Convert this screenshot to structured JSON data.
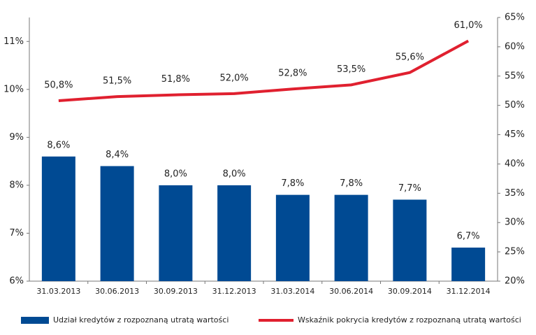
{
  "chart_data": {
    "type": "bar-line",
    "categories": [
      "31.03.2013",
      "30.06.2013",
      "30.09.2013",
      "31.12.2013",
      "31.03.2014",
      "30.06.2014",
      "30.09.2014",
      "31.12.2014"
    ],
    "series": [
      {
        "name": "Udział kredytów z rozpoznaną utratą wartości",
        "type": "bar",
        "color": "#004a93",
        "values": [
          8.6,
          8.4,
          8.0,
          8.0,
          7.8,
          7.8,
          7.7,
          6.7
        ],
        "value_labels": [
          "8,6%",
          "8,4%",
          "8,0%",
          "8,0%",
          "7,8%",
          "7,8%",
          "7,7%",
          "6,7%"
        ]
      },
      {
        "name": "Wskaźnik pokrycia kredytów z rozpoznaną utratą wartości",
        "type": "line",
        "axis": "y2",
        "color": "#e0202f",
        "values": [
          50.8,
          51.5,
          51.8,
          52.0,
          52.8,
          53.5,
          55.6,
          61.0
        ],
        "value_labels": [
          "50,8%",
          "51,5%",
          "51,8%",
          "52,0%",
          "52,8%",
          "53,5%",
          "55,6%",
          "61,0%"
        ]
      }
    ],
    "ylim": [
      6,
      11.5
    ],
    "yticks": [
      {
        "value": 6,
        "label": "6%"
      },
      {
        "value": 7,
        "label": "7%"
      },
      {
        "value": 8,
        "label": "8%"
      },
      {
        "value": 9,
        "label": "9%"
      },
      {
        "value": 10,
        "label": "10%"
      },
      {
        "value": 11,
        "label": "11%"
      }
    ],
    "y2lim": [
      20,
      65
    ],
    "y2ticks": [
      {
        "value": 20,
        "label": "20%"
      },
      {
        "value": 25,
        "label": "25%"
      },
      {
        "value": 30,
        "label": "30%"
      },
      {
        "value": 35,
        "label": "35%"
      },
      {
        "value": 40,
        "label": "40%"
      },
      {
        "value": 45,
        "label": "45%"
      },
      {
        "value": 50,
        "label": "50%"
      },
      {
        "value": 55,
        "label": "55%"
      },
      {
        "value": 60,
        "label": "60%"
      },
      {
        "value": 65,
        "label": "65%"
      }
    ],
    "legend": "bottom"
  }
}
